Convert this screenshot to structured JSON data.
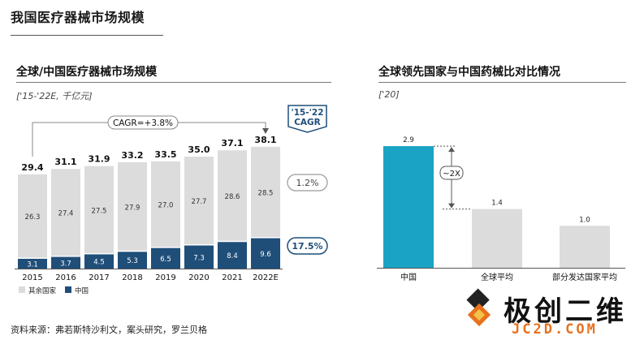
{
  "page_title": "我国医疗器械市场规模",
  "source": "资料来源：弗若斯特沙利文，案头研究，罗兰贝格",
  "watermark": {
    "name": "极创二维",
    "domain": "JC2D.COM"
  },
  "chart_data": [
    {
      "type": "bar",
      "stacked": true,
      "title": "全球/中国医疗器械市场规模",
      "subtitle": "['15-'22E, 千亿元]",
      "categories": [
        "2015",
        "2016",
        "2017",
        "2018",
        "2019",
        "2020",
        "2021",
        "2022E"
      ],
      "series": [
        {
          "name": "中国",
          "color": "#1f4e79",
          "values": [
            3.1,
            3.7,
            4.5,
            5.3,
            6.5,
            7.3,
            8.4,
            9.6
          ]
        },
        {
          "name": "其余国家",
          "color": "#dcdcdc",
          "values": [
            26.3,
            27.4,
            27.5,
            27.9,
            27.0,
            27.7,
            28.6,
            28.5
          ]
        }
      ],
      "totals": [
        "29.4",
        "31.1",
        "31.9",
        "33.2",
        "33.5",
        "35.0",
        "37.1",
        "38.1"
      ],
      "cagr_overall": "CAGR=+3.8%",
      "cagr_header": [
        "'15-'22",
        "CAGR"
      ],
      "cagr_badges": [
        "1.2%",
        "17.5%"
      ],
      "legend": [
        "其余国家",
        "中国"
      ],
      "ylim": [
        0,
        40
      ]
    },
    {
      "type": "bar",
      "title": "全球领先国家与中国药械比对比情况",
      "subtitle": "['20]",
      "categories": [
        "中国",
        "全球平均",
        "部分发达国家平均"
      ],
      "values": [
        2.9,
        1.4,
        1.0
      ],
      "labels": [
        "2.9",
        "1.4",
        "1.0"
      ],
      "colors": [
        "#1aa3c4",
        "#dcdcdc",
        "#dcdcdc"
      ],
      "annotation": "~2X",
      "ylim": [
        0,
        3.2
      ]
    }
  ]
}
